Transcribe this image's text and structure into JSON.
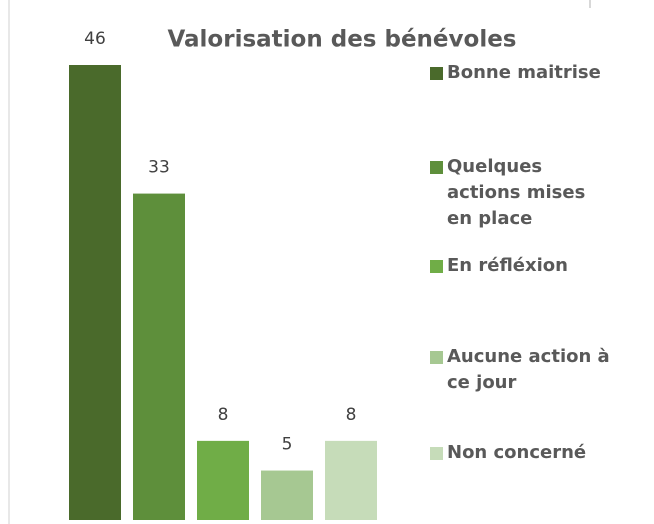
{
  "chart_data": {
    "type": "bar",
    "title": "Valorisation des bénévoles",
    "categories": [
      "Bonne maitrise",
      "Quelques actions mises en place",
      "En réfléxion",
      "Aucune action à ce jour",
      "Non concerné"
    ],
    "values": [
      46,
      33,
      8,
      5,
      8
    ],
    "colors": [
      "#4a6a2b",
      "#5e8f3b",
      "#70ad47",
      "#a6c892",
      "#c6dcb9"
    ]
  }
}
